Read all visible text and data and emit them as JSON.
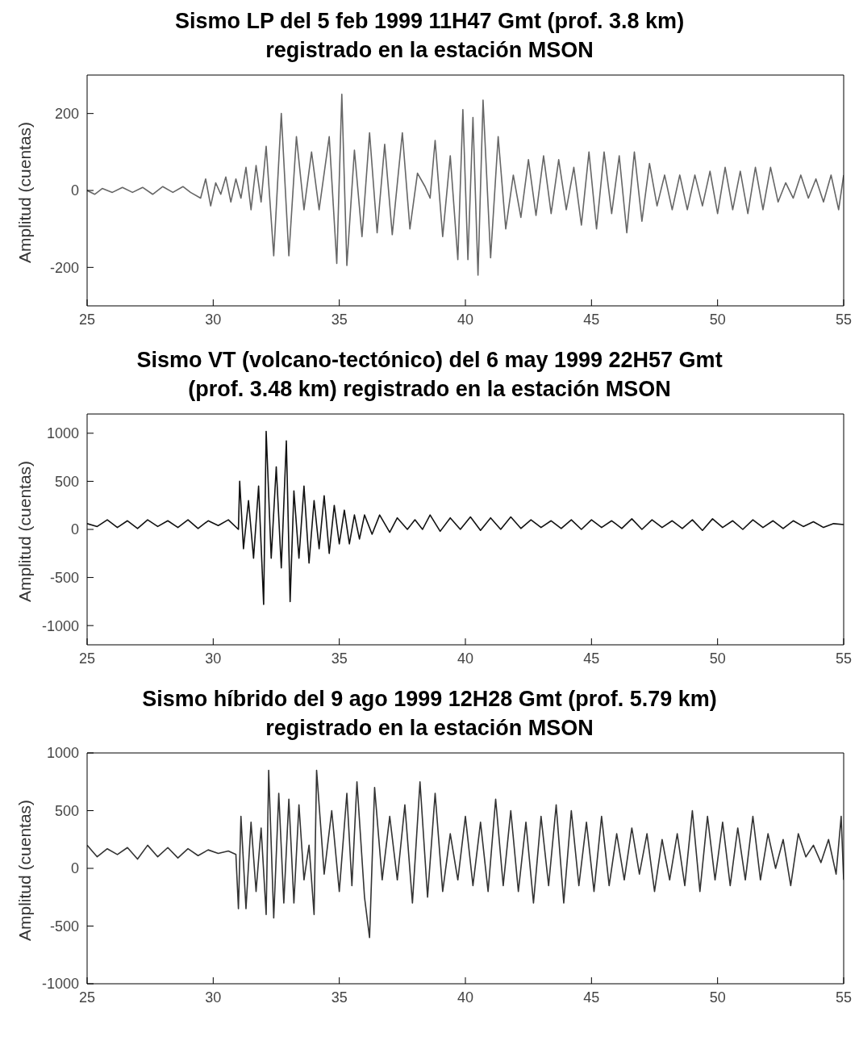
{
  "chart_data": [
    {
      "type": "line",
      "title": "Sismo LP del 5 feb 1999  11H47 Gmt (prof. 3.8 km)\nregistrado en la estación MSON",
      "ylabel": "Amplitud (cuentas)",
      "color": "#666666",
      "xlim": [
        25,
        55
      ],
      "xticks": [
        25,
        30,
        35,
        40,
        45,
        50,
        55
      ],
      "ylim": [
        -300,
        300
      ],
      "yticks": [
        -200,
        0,
        200
      ],
      "x": [
        25,
        25.3,
        25.6,
        26,
        26.4,
        26.8,
        27.2,
        27.6,
        28,
        28.4,
        28.8,
        29.1,
        29.5,
        29.7,
        29.9,
        30.1,
        30.3,
        30.5,
        30.7,
        30.9,
        31.1,
        31.3,
        31.5,
        31.7,
        31.9,
        32.1,
        32.4,
        32.7,
        33,
        33.3,
        33.6,
        33.9,
        34.2,
        34.6,
        34.9,
        35.1,
        35.3,
        35.6,
        35.9,
        36.2,
        36.5,
        36.8,
        37.1,
        37.5,
        37.8,
        38.1,
        38.4,
        38.6,
        38.8,
        39.1,
        39.4,
        39.7,
        39.9,
        40.1,
        40.3,
        40.5,
        40.7,
        41,
        41.3,
        41.6,
        41.9,
        42.2,
        42.5,
        42.8,
        43.1,
        43.4,
        43.7,
        44,
        44.3,
        44.6,
        44.9,
        45.2,
        45.5,
        45.8,
        46.1,
        46.4,
        46.7,
        47,
        47.3,
        47.6,
        47.9,
        48.2,
        48.5,
        48.8,
        49.1,
        49.4,
        49.7,
        50,
        50.3,
        50.6,
        50.9,
        51.2,
        51.5,
        51.8,
        52.1,
        52.4,
        52.7,
        53,
        53.3,
        53.6,
        53.9,
        54.2,
        54.5,
        54.8,
        55
      ],
      "values": [
        0,
        -10,
        5,
        -5,
        8,
        -5,
        8,
        -10,
        10,
        -5,
        10,
        -5,
        -20,
        30,
        -40,
        20,
        -10,
        35,
        -30,
        30,
        -20,
        60,
        -50,
        65,
        -30,
        115,
        -170,
        200,
        -170,
        140,
        -50,
        100,
        -50,
        140,
        -190,
        250,
        -195,
        105,
        -120,
        150,
        -110,
        120,
        -115,
        150,
        -100,
        45,
        10,
        -20,
        130,
        -120,
        90,
        -180,
        210,
        -180,
        190,
        -220,
        235,
        -175,
        140,
        -100,
        40,
        -70,
        80,
        -65,
        90,
        -60,
        80,
        -50,
        60,
        -90,
        100,
        -100,
        100,
        -60,
        90,
        -110,
        100,
        -80,
        70,
        -40,
        40,
        -50,
        40,
        -50,
        40,
        -40,
        50,
        -60,
        60,
        -50,
        50,
        -60,
        60,
        -50,
        60,
        -30,
        20,
        -20,
        40,
        -20,
        30,
        -30,
        40,
        -50,
        40
      ]
    },
    {
      "type": "line",
      "title": "Sismo VT (volcano-tectónico) del 6 may 1999 22H57 Gmt\n(prof. 3.48 km) registrado en la estación MSON",
      "ylabel": "Amplitud (cuentas)",
      "color": "#111111",
      "xlim": [
        25,
        55
      ],
      "xticks": [
        25,
        30,
        35,
        40,
        45,
        50,
        55
      ],
      "ylim": [
        -1200,
        1200
      ],
      "yticks": [
        -1000,
        -500,
        0,
        500,
        1000
      ],
      "x": [
        25,
        25.4,
        25.8,
        26.2,
        26.6,
        27,
        27.4,
        27.8,
        28.2,
        28.6,
        29,
        29.4,
        29.8,
        30.2,
        30.6,
        31,
        31.05,
        31.2,
        31.4,
        31.6,
        31.8,
        32,
        32.1,
        32.3,
        32.5,
        32.7,
        32.9,
        33.05,
        33.2,
        33.4,
        33.6,
        33.8,
        34,
        34.2,
        34.4,
        34.6,
        34.8,
        35,
        35.2,
        35.4,
        35.6,
        35.8,
        36,
        36.3,
        36.6,
        37,
        37.3,
        37.7,
        38,
        38.3,
        38.6,
        39,
        39.4,
        39.8,
        40.2,
        40.6,
        41,
        41.4,
        41.8,
        42.2,
        42.6,
        43,
        43.4,
        43.8,
        44.2,
        44.6,
        45,
        45.4,
        45.8,
        46.2,
        46.6,
        47,
        47.4,
        47.8,
        48.2,
        48.6,
        49,
        49.4,
        49.8,
        50.2,
        50.6,
        51,
        51.4,
        51.8,
        52.2,
        52.6,
        53,
        53.4,
        53.8,
        54.2,
        54.6,
        55
      ],
      "values": [
        60,
        30,
        100,
        20,
        90,
        10,
        100,
        30,
        90,
        20,
        100,
        10,
        90,
        40,
        100,
        0,
        500,
        -200,
        300,
        -300,
        450,
        -780,
        1020,
        -300,
        650,
        -400,
        920,
        -750,
        400,
        -300,
        450,
        -350,
        300,
        -200,
        350,
        -250,
        250,
        -150,
        200,
        -150,
        150,
        -100,
        150,
        -50,
        150,
        -30,
        120,
        0,
        100,
        0,
        150,
        -20,
        120,
        0,
        130,
        -10,
        120,
        0,
        130,
        10,
        100,
        20,
        90,
        10,
        100,
        0,
        100,
        20,
        90,
        10,
        110,
        0,
        100,
        20,
        90,
        10,
        100,
        -10,
        110,
        20,
        90,
        0,
        100,
        20,
        90,
        10,
        90,
        30,
        80,
        20,
        60,
        50
      ]
    },
    {
      "type": "line",
      "title": "Sismo híbrido del 9 ago 1999 12H28 Gmt (prof. 5.79 km)\nregistrado en la estación MSON",
      "ylabel": "Amplitud (cuentas)",
      "color": "#333333",
      "xlim": [
        25,
        55
      ],
      "xticks": [
        25,
        30,
        35,
        40,
        45,
        50,
        55
      ],
      "ylim": [
        -1000,
        1000
      ],
      "yticks": [
        -1000,
        -500,
        0,
        500,
        1000
      ],
      "x": [
        25,
        25.4,
        25.8,
        26.2,
        26.6,
        27,
        27.4,
        27.8,
        28.2,
        28.6,
        29,
        29.4,
        29.8,
        30.2,
        30.6,
        30.9,
        31,
        31.1,
        31.3,
        31.5,
        31.7,
        31.9,
        32.1,
        32.2,
        32.4,
        32.6,
        32.8,
        33,
        33.2,
        33.4,
        33.6,
        33.8,
        34,
        34.1,
        34.4,
        34.7,
        35,
        35.3,
        35.5,
        35.7,
        36,
        36.2,
        36.4,
        36.7,
        37,
        37.3,
        37.6,
        37.9,
        38.2,
        38.5,
        38.8,
        39.1,
        39.4,
        39.7,
        40,
        40.3,
        40.6,
        40.9,
        41.2,
        41.5,
        41.8,
        42.1,
        42.4,
        42.7,
        43,
        43.3,
        43.6,
        43.9,
        44.2,
        44.5,
        44.8,
        45.1,
        45.4,
        45.7,
        46,
        46.3,
        46.6,
        46.9,
        47.2,
        47.5,
        47.8,
        48.1,
        48.4,
        48.7,
        49,
        49.3,
        49.6,
        49.9,
        50.2,
        50.5,
        50.8,
        51.1,
        51.4,
        51.7,
        52,
        52.3,
        52.6,
        52.9,
        53.2,
        53.5,
        53.8,
        54.1,
        54.4,
        54.7,
        54.9,
        55
      ],
      "values": [
        200,
        100,
        170,
        120,
        180,
        80,
        200,
        100,
        180,
        90,
        170,
        110,
        160,
        130,
        150,
        120,
        -350,
        450,
        -350,
        400,
        -200,
        350,
        -400,
        850,
        -430,
        650,
        -300,
        600,
        -300,
        550,
        -100,
        200,
        -400,
        850,
        -50,
        500,
        -200,
        650,
        -150,
        750,
        -250,
        -600,
        700,
        -100,
        450,
        -100,
        550,
        -300,
        750,
        -250,
        650,
        -200,
        300,
        -100,
        450,
        -150,
        400,
        -200,
        600,
        -150,
        500,
        -200,
        400,
        -300,
        450,
        -150,
        550,
        -300,
        500,
        -150,
        400,
        -200,
        450,
        -150,
        300,
        -100,
        350,
        -50,
        300,
        -200,
        250,
        -100,
        300,
        -150,
        500,
        -200,
        450,
        -100,
        400,
        -150,
        350,
        -100,
        450,
        -100,
        300,
        0,
        250,
        -150,
        300,
        100,
        200,
        50,
        250,
        -50,
        450,
        -100
      ]
    }
  ]
}
